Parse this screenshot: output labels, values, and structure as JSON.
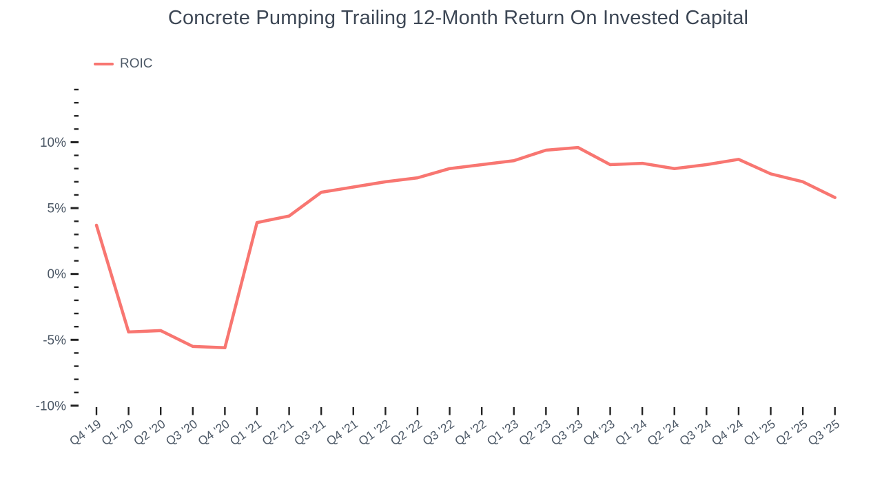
{
  "chart_data": {
    "type": "line",
    "title": "Concrete Pumping Trailing 12-Month Return On Invested Capital",
    "legend": [
      {
        "label": "ROIC",
        "color": "#f87671"
      }
    ],
    "legend_position": "top-left",
    "categories": [
      "Q4 '19",
      "Q1 '20",
      "Q2 '20",
      "Q3 '20",
      "Q4 '20",
      "Q1 '21",
      "Q2 '21",
      "Q3 '21",
      "Q4 '21",
      "Q1 '22",
      "Q2 '22",
      "Q3 '22",
      "Q4 '22",
      "Q1 '23",
      "Q2 '23",
      "Q3 '23",
      "Q4 '23",
      "Q1 '24",
      "Q2 '24",
      "Q3 '24",
      "Q4 '24",
      "Q1 '25",
      "Q2 '25",
      "Q3 '25"
    ],
    "series": [
      {
        "name": "ROIC",
        "values": [
          3.7,
          -4.4,
          -4.3,
          -5.5,
          -5.6,
          3.9,
          4.4,
          6.2,
          6.6,
          7.0,
          7.3,
          8.0,
          8.3,
          8.6,
          9.4,
          9.6,
          8.3,
          8.4,
          8.0,
          8.3,
          8.7,
          7.6,
          7.0,
          5.8
        ]
      }
    ],
    "xlabel": "",
    "ylabel": "",
    "ylim": [
      -10,
      14
    ],
    "ytick_major_step": 5,
    "ytick_minor_step": 1,
    "ytick_labels": [
      "-10%",
      "-5%",
      "0%",
      "5%",
      "10%"
    ],
    "ytick_suffix": "%",
    "grid": false,
    "colors": {
      "line": "#f87671",
      "title_text": "#3d4755",
      "axis_label_text": "#4c5866",
      "tick_mark": "#222222",
      "background": "#ffffff"
    }
  }
}
